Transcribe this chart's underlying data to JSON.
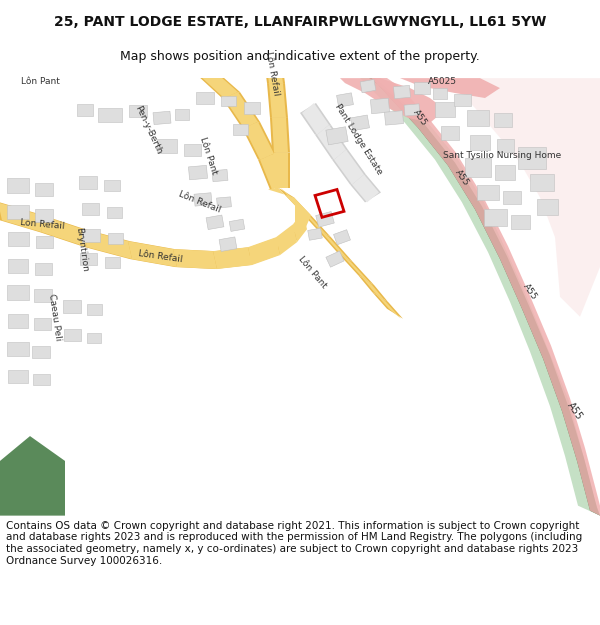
{
  "title": "25, PANT LODGE ESTATE, LLANFAIRPWLLGWYNGYLL, LL61 5YW",
  "subtitle": "Map shows position and indicative extent of the property.",
  "footer": "Contains OS data © Crown copyright and database right 2021. This information is subject to Crown copyright and database rights 2023 and is reproduced with the permission of HM Land Registry. The polygons (including the associated geometry, namely x, y co-ordinates) are subject to Crown copyright and database rights 2023 Ordnance Survey 100026316.",
  "title_fontsize": 10,
  "subtitle_fontsize": 9,
  "footer_fontsize": 7.5,
  "map_bg": "#f0ede5",
  "road_yellow": "#f5d57a",
  "road_yellow_border": "#e8b84b",
  "building_color": "#dedede",
  "building_edge": "#c0c0c0",
  "plot_red": "#cc0000",
  "highway_green": "#4a7c4a",
  "highway_light_green": "#a0c8a0",
  "green_area": "#5a8a5a",
  "text_color": "#333333"
}
